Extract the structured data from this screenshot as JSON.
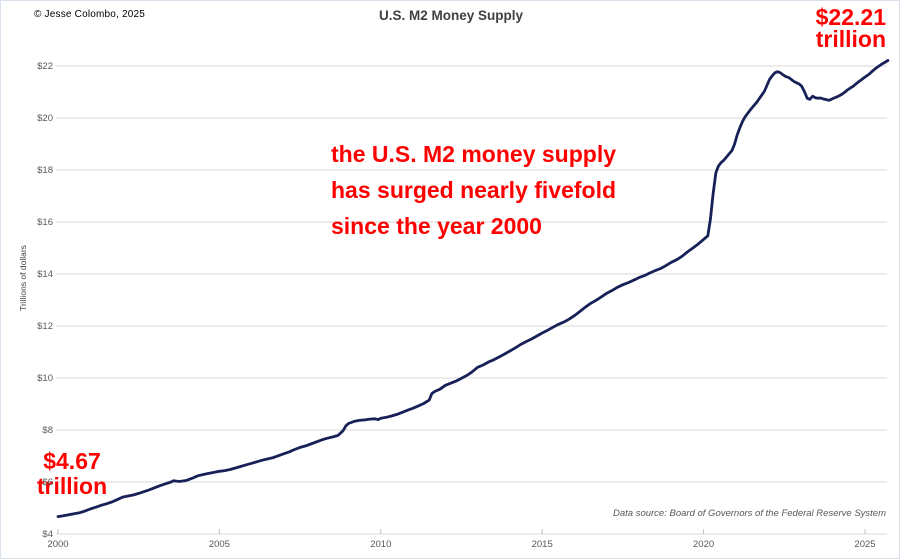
{
  "header": {
    "copyright": "© Jesse Colombo, 2025",
    "title": "U.S. M2 Money Supply"
  },
  "annotations": {
    "end_value": {
      "line1": "$22.21",
      "line2": "trillion"
    },
    "start_value": {
      "line1": "$4.67",
      "line2": "trillion"
    },
    "center_note": {
      "line1": "the U.S. M2 money supply",
      "line2": "has surged nearly fivefold",
      "line3": "since the year 2000"
    }
  },
  "footer": {
    "data_source": "Data source: Board of Governors of the Federal Reserve System"
  },
  "colors": {
    "line": "#172057",
    "annotation_red": "#ff0000",
    "grid": "#d9d9d9",
    "tick": "#bfbfbf",
    "axis_text": "#595959",
    "title_text": "#404040"
  },
  "chart_data": {
    "type": "line",
    "title": "U.S. M2 Money Supply",
    "xlabel": "",
    "ylabel": "Trillions of dollars",
    "grid": "horizontal",
    "legend": "none",
    "x_axis": {
      "min": 2000,
      "max": 2025.9,
      "tick_years": [
        2000,
        2005,
        2010,
        2015,
        2020,
        2025
      ],
      "tick_labels": [
        "2000",
        "2005",
        "2010",
        "2015",
        "2020",
        "2025"
      ]
    },
    "y_axis": {
      "min": 4,
      "max": 22,
      "unit": "trillions of dollars",
      "tick_values": [
        4,
        6,
        8,
        10,
        12,
        14,
        16,
        18,
        20,
        22
      ],
      "tick_labels": [
        "$4",
        "$6",
        "$8",
        "$10",
        "$12",
        "$14",
        "$16",
        "$18",
        "$20",
        "$22"
      ]
    },
    "first_point": {
      "year": 2000.0,
      "value_trillions": 4.67
    },
    "last_point": {
      "year": 2025.7,
      "value_trillions": 22.21
    },
    "series": [
      {
        "name": "U.S. M2 Money Supply",
        "color": "#172057",
        "points": [
          [
            2000.0,
            4.67
          ],
          [
            2000.17,
            4.7
          ],
          [
            2000.33,
            4.74
          ],
          [
            2000.5,
            4.78
          ],
          [
            2000.67,
            4.82
          ],
          [
            2000.83,
            4.88
          ],
          [
            2001.0,
            4.96
          ],
          [
            2001.17,
            5.03
          ],
          [
            2001.33,
            5.1
          ],
          [
            2001.5,
            5.16
          ],
          [
            2001.67,
            5.23
          ],
          [
            2001.83,
            5.32
          ],
          [
            2002.0,
            5.42
          ],
          [
            2002.17,
            5.46
          ],
          [
            2002.33,
            5.5
          ],
          [
            2002.5,
            5.56
          ],
          [
            2002.67,
            5.63
          ],
          [
            2002.83,
            5.7
          ],
          [
            2003.0,
            5.78
          ],
          [
            2003.17,
            5.86
          ],
          [
            2003.33,
            5.93
          ],
          [
            2003.5,
            6.0
          ],
          [
            2003.58,
            6.05
          ],
          [
            2003.75,
            6.02
          ],
          [
            2003.92,
            6.05
          ],
          [
            2004.0,
            6.07
          ],
          [
            2004.17,
            6.15
          ],
          [
            2004.33,
            6.24
          ],
          [
            2004.5,
            6.29
          ],
          [
            2004.67,
            6.33
          ],
          [
            2004.83,
            6.37
          ],
          [
            2005.0,
            6.41
          ],
          [
            2005.17,
            6.44
          ],
          [
            2005.33,
            6.48
          ],
          [
            2005.5,
            6.54
          ],
          [
            2005.67,
            6.6
          ],
          [
            2005.83,
            6.66
          ],
          [
            2006.0,
            6.72
          ],
          [
            2006.17,
            6.78
          ],
          [
            2006.33,
            6.84
          ],
          [
            2006.5,
            6.89
          ],
          [
            2006.67,
            6.94
          ],
          [
            2006.83,
            7.01
          ],
          [
            2007.0,
            7.09
          ],
          [
            2007.17,
            7.16
          ],
          [
            2007.33,
            7.25
          ],
          [
            2007.5,
            7.33
          ],
          [
            2007.67,
            7.39
          ],
          [
            2007.83,
            7.46
          ],
          [
            2008.0,
            7.54
          ],
          [
            2008.17,
            7.62
          ],
          [
            2008.33,
            7.68
          ],
          [
            2008.5,
            7.73
          ],
          [
            2008.67,
            7.79
          ],
          [
            2008.83,
            7.97
          ],
          [
            2008.92,
            8.16
          ],
          [
            2009.0,
            8.25
          ],
          [
            2009.17,
            8.33
          ],
          [
            2009.33,
            8.37
          ],
          [
            2009.5,
            8.39
          ],
          [
            2009.67,
            8.42
          ],
          [
            2009.83,
            8.43
          ],
          [
            2009.92,
            8.4
          ],
          [
            2010.0,
            8.45
          ],
          [
            2010.17,
            8.49
          ],
          [
            2010.33,
            8.54
          ],
          [
            2010.5,
            8.6
          ],
          [
            2010.67,
            8.68
          ],
          [
            2010.83,
            8.76
          ],
          [
            2011.0,
            8.84
          ],
          [
            2011.17,
            8.93
          ],
          [
            2011.33,
            9.02
          ],
          [
            2011.5,
            9.15
          ],
          [
            2011.58,
            9.4
          ],
          [
            2011.67,
            9.48
          ],
          [
            2011.83,
            9.57
          ],
          [
            2012.0,
            9.72
          ],
          [
            2012.17,
            9.8
          ],
          [
            2012.33,
            9.88
          ],
          [
            2012.5,
            9.99
          ],
          [
            2012.67,
            10.1
          ],
          [
            2012.83,
            10.24
          ],
          [
            2013.0,
            10.41
          ],
          [
            2013.17,
            10.5
          ],
          [
            2013.33,
            10.61
          ],
          [
            2013.5,
            10.7
          ],
          [
            2013.67,
            10.81
          ],
          [
            2013.83,
            10.92
          ],
          [
            2014.0,
            11.04
          ],
          [
            2014.17,
            11.16
          ],
          [
            2014.33,
            11.29
          ],
          [
            2014.5,
            11.4
          ],
          [
            2014.67,
            11.5
          ],
          [
            2014.83,
            11.61
          ],
          [
            2015.0,
            11.73
          ],
          [
            2015.17,
            11.84
          ],
          [
            2015.33,
            11.95
          ],
          [
            2015.5,
            12.06
          ],
          [
            2015.67,
            12.15
          ],
          [
            2015.83,
            12.26
          ],
          [
            2016.0,
            12.4
          ],
          [
            2016.17,
            12.56
          ],
          [
            2016.33,
            12.72
          ],
          [
            2016.5,
            12.87
          ],
          [
            2016.67,
            12.99
          ],
          [
            2016.83,
            13.12
          ],
          [
            2017.0,
            13.26
          ],
          [
            2017.17,
            13.37
          ],
          [
            2017.33,
            13.49
          ],
          [
            2017.5,
            13.59
          ],
          [
            2017.67,
            13.67
          ],
          [
            2017.83,
            13.76
          ],
          [
            2018.0,
            13.86
          ],
          [
            2018.17,
            13.94
          ],
          [
            2018.33,
            14.04
          ],
          [
            2018.5,
            14.13
          ],
          [
            2018.67,
            14.21
          ],
          [
            2018.83,
            14.32
          ],
          [
            2019.0,
            14.45
          ],
          [
            2019.17,
            14.55
          ],
          [
            2019.33,
            14.68
          ],
          [
            2019.5,
            14.85
          ],
          [
            2019.67,
            15.0
          ],
          [
            2019.83,
            15.15
          ],
          [
            2020.0,
            15.33
          ],
          [
            2020.13,
            15.47
          ],
          [
            2020.21,
            16.1
          ],
          [
            2020.29,
            17.05
          ],
          [
            2020.38,
            17.9
          ],
          [
            2020.46,
            18.15
          ],
          [
            2020.54,
            18.28
          ],
          [
            2020.63,
            18.38
          ],
          [
            2020.71,
            18.5
          ],
          [
            2020.79,
            18.62
          ],
          [
            2020.88,
            18.75
          ],
          [
            2020.96,
            19.0
          ],
          [
            2021.04,
            19.35
          ],
          [
            2021.13,
            19.65
          ],
          [
            2021.21,
            19.88
          ],
          [
            2021.29,
            20.05
          ],
          [
            2021.38,
            20.2
          ],
          [
            2021.46,
            20.33
          ],
          [
            2021.54,
            20.45
          ],
          [
            2021.63,
            20.58
          ],
          [
            2021.71,
            20.72
          ],
          [
            2021.79,
            20.86
          ],
          [
            2021.88,
            21.02
          ],
          [
            2021.96,
            21.25
          ],
          [
            2022.04,
            21.48
          ],
          [
            2022.13,
            21.63
          ],
          [
            2022.21,
            21.74
          ],
          [
            2022.29,
            21.78
          ],
          [
            2022.38,
            21.74
          ],
          [
            2022.46,
            21.66
          ],
          [
            2022.54,
            21.6
          ],
          [
            2022.63,
            21.56
          ],
          [
            2022.71,
            21.49
          ],
          [
            2022.79,
            21.41
          ],
          [
            2022.88,
            21.35
          ],
          [
            2022.96,
            21.31
          ],
          [
            2023.04,
            21.22
          ],
          [
            2023.13,
            21.0
          ],
          [
            2023.21,
            20.76
          ],
          [
            2023.29,
            20.72
          ],
          [
            2023.38,
            20.84
          ],
          [
            2023.46,
            20.78
          ],
          [
            2023.54,
            20.76
          ],
          [
            2023.63,
            20.77
          ],
          [
            2023.71,
            20.73
          ],
          [
            2023.79,
            20.71
          ],
          [
            2023.88,
            20.68
          ],
          [
            2023.96,
            20.72
          ],
          [
            2024.04,
            20.77
          ],
          [
            2024.13,
            20.81
          ],
          [
            2024.21,
            20.86
          ],
          [
            2024.29,
            20.92
          ],
          [
            2024.38,
            21.0
          ],
          [
            2024.46,
            21.08
          ],
          [
            2024.54,
            21.15
          ],
          [
            2024.63,
            21.22
          ],
          [
            2024.71,
            21.3
          ],
          [
            2024.79,
            21.38
          ],
          [
            2024.88,
            21.46
          ],
          [
            2024.96,
            21.54
          ],
          [
            2025.04,
            21.61
          ],
          [
            2025.13,
            21.69
          ],
          [
            2025.21,
            21.78
          ],
          [
            2025.29,
            21.87
          ],
          [
            2025.38,
            21.95
          ],
          [
            2025.46,
            22.02
          ],
          [
            2025.54,
            22.09
          ],
          [
            2025.63,
            22.15
          ],
          [
            2025.71,
            22.21
          ]
        ]
      }
    ]
  }
}
